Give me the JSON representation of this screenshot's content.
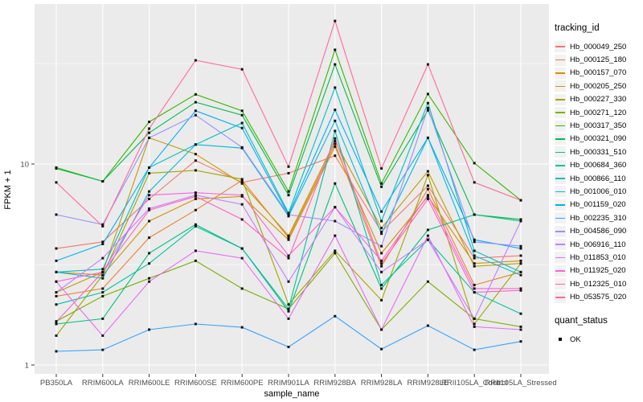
{
  "figure": {
    "background": "#FFFFFF",
    "panel_bg": "#EBEBEB",
    "grid_color": "#FFFFFF",
    "axis_text_color": "#4D4D4D",
    "axis_title_color": "#000000",
    "point_color": "#111111"
  },
  "legend": {
    "tracking_title": "tracking_id",
    "quant_title": "quant_status",
    "quant_items": [
      "OK"
    ]
  },
  "axes": {
    "x_title": "sample_name",
    "y_title": "FPKM + 1",
    "y_tick_labels": [
      "10",
      "1"
    ]
  },
  "chart_data": {
    "type": "line",
    "title": "",
    "xlabel": "sample_name",
    "ylabel": "FPKM + 1",
    "y_scale": "log10",
    "y_ticks": [
      1,
      10
    ],
    "y_minor_ticks": [
      3.1623,
      31.623
    ],
    "ylim_log10": [
      -0.045,
      1.8
    ],
    "grid": true,
    "legend_position": "right",
    "point_shape": "filled-square",
    "quant_status": "OK",
    "categories": [
      "PB350LA",
      "RRIM600LA",
      "RRIM600LE",
      "RRIM600SE",
      "RRIM600PE",
      "RRIM901LA",
      "RRIM928BA",
      "RRIM928LA",
      "RRIM928LE",
      "RRII105LA_Control",
      "RRII105LA_Stressed"
    ],
    "series": [
      {
        "name": "Hb_000049_250",
        "color": "#F8766D",
        "values": [
          3.8,
          4.1,
          6.7,
          10.4,
          8.1,
          9.0,
          11.0,
          4.6,
          7.8,
          3.4,
          3.5
        ]
      },
      {
        "name": "Hb_000125_180",
        "color": "#EA8331",
        "values": [
          2.2,
          2.4,
          4.3,
          5.9,
          8.3,
          4.3,
          12.6,
          3.1,
          7.5,
          2.5,
          2.9
        ]
      },
      {
        "name": "Hb_000157_070",
        "color": "#D89000",
        "values": [
          2.9,
          2.8,
          5.2,
          6.7,
          6.9,
          4.2,
          12.2,
          3.6,
          6.9,
          3.2,
          3.3
        ]
      },
      {
        "name": "Hb_000205_250",
        "color": "#C09B00",
        "values": [
          2.3,
          2.9,
          13.5,
          11.2,
          8.0,
          4.4,
          13.0,
          4.8,
          9.2,
          3.1,
          3.2
        ]
      },
      {
        "name": "Hb_000227_330",
        "color": "#A3A500",
        "values": [
          1.4,
          2.8,
          9.0,
          9.3,
          8.4,
          2.0,
          3.7,
          2.1,
          8.8,
          1.6,
          3.2
        ]
      },
      {
        "name": "Hb_000271_120",
        "color": "#7CAE00",
        "values": [
          1.65,
          2.2,
          2.7,
          3.3,
          2.4,
          1.9,
          3.6,
          1.5,
          2.6,
          1.7,
          1.55
        ]
      },
      {
        "name": "Hb_000317_350",
        "color": "#39B600",
        "values": [
          9.6,
          8.2,
          16.2,
          22.2,
          18.4,
          7.3,
          37.0,
          8.0,
          22.3,
          10.1,
          6.6
        ]
      },
      {
        "name": "Hb_000321_090",
        "color": "#00BB4E",
        "values": [
          9.5,
          8.2,
          14.3,
          20.3,
          17.5,
          7.0,
          31.3,
          7.7,
          18.5,
          5.6,
          5.3
        ]
      },
      {
        "name": "Hb_000331_510",
        "color": "#00BF7D",
        "values": [
          1.6,
          1.7,
          3.6,
          5.0,
          3.8,
          1.85,
          8.0,
          2.4,
          4.7,
          5.6,
          5.2
        ]
      },
      {
        "name": "Hb_000684_360",
        "color": "#00C1A3",
        "values": [
          2.0,
          2.3,
          3.2,
          4.9,
          3.8,
          1.9,
          14.6,
          2.5,
          4.2,
          2.3,
          1.8
        ]
      },
      {
        "name": "Hb_000866_110",
        "color": "#00BFC4",
        "values": [
          2.9,
          3.0,
          9.6,
          12.5,
          16.0,
          5.7,
          24.0,
          5.2,
          20.1,
          3.7,
          2.9
        ]
      },
      {
        "name": "Hb_001006_010",
        "color": "#00BAE0",
        "values": [
          2.9,
          2.7,
          7.3,
          12.5,
          12.0,
          5.5,
          16.4,
          4.5,
          13.5,
          3.5,
          2.8
        ]
      },
      {
        "name": "Hb_001159_020",
        "color": "#00B0F6",
        "values": [
          3.3,
          4.0,
          9.6,
          18.4,
          15.1,
          5.6,
          18.6,
          5.8,
          13.5,
          4.2,
          3.8
        ]
      },
      {
        "name": "Hb_002235_310",
        "color": "#35A2FF",
        "values": [
          1.17,
          1.19,
          1.5,
          1.6,
          1.54,
          1.23,
          1.75,
          1.2,
          1.57,
          1.19,
          1.31
        ]
      },
      {
        "name": "Hb_004586_090",
        "color": "#9590FF",
        "values": [
          5.6,
          5.0,
          13.5,
          17.5,
          12.1,
          5.6,
          5.2,
          3.9,
          19.0,
          4.1,
          3.9
        ]
      },
      {
        "name": "Hb_006916_110",
        "color": "#C77CFF",
        "values": [
          2.3,
          3.4,
          6.0,
          7.0,
          6.3,
          2.6,
          6.1,
          2.9,
          4.2,
          1.7,
          5.2
        ]
      },
      {
        "name": "Hb_011853_010",
        "color": "#E76BF3",
        "values": [
          2.6,
          1.4,
          2.6,
          3.7,
          3.4,
          1.7,
          4.4,
          1.5,
          4.4,
          1.55,
          1.5
        ]
      },
      {
        "name": "Hb_011925_020",
        "color": "#FA62DB",
        "values": [
          2.6,
          2.9,
          7.0,
          7.2,
          7.0,
          3.5,
          6.1,
          3.3,
          7.0,
          2.4,
          2.4
        ]
      },
      {
        "name": "Hb_012325_010",
        "color": "#FF62BC",
        "values": [
          1.64,
          2.9,
          5.9,
          6.9,
          5.3,
          3.4,
          13.4,
          3.2,
          6.7,
          2.3,
          2.35
        ]
      },
      {
        "name": "Hb_053575_020",
        "color": "#FF6A98",
        "values": [
          8.1,
          4.9,
          15.0,
          32.8,
          29.6,
          9.7,
          51.5,
          9.5,
          31.3,
          8.1,
          6.6
        ]
      }
    ]
  }
}
